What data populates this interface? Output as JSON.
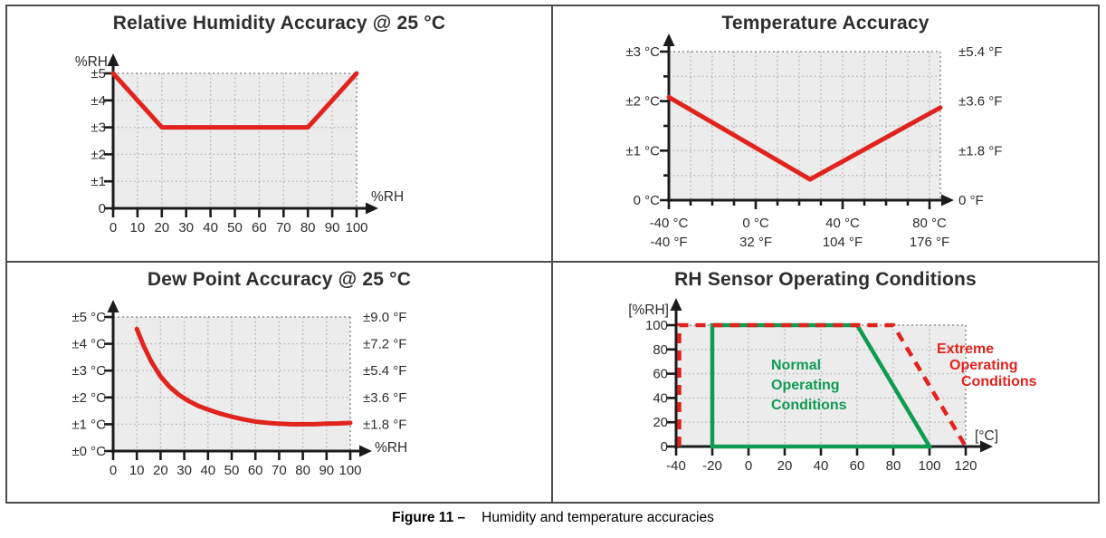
{
  "figure": {
    "caption_label": "Figure 11 –",
    "caption_text": "Humidity and temperature accuracies"
  },
  "colors": {
    "accuracy_line_red": "#e1231e",
    "normal_region_green": "#109b52",
    "extreme_region_red": "#e1231e",
    "plot_background": "#ececec",
    "grid_line": "#b5b5b5",
    "plot_dotted_border": "#8f8f8f",
    "axis_black": "#1b1b1b",
    "tick_text": "#2d2d2d",
    "title_text": "#2e2e2e"
  },
  "chart_data": [
    {
      "type": "line",
      "title": "Relative Humidity Accuracy @ 25 °C",
      "y_axis_label": "%RH",
      "x_axis_label": "%RH",
      "xlim": [
        0,
        100
      ],
      "ylim": [
        0,
        5
      ],
      "x_ticks": [
        0,
        10,
        20,
        30,
        40,
        50,
        60,
        70,
        80,
        90,
        100
      ],
      "x_tick_labels": [
        "0",
        "10",
        "20",
        "30",
        "40",
        "50",
        "60",
        "70",
        "80",
        "90",
        "100"
      ],
      "y_ticks": [
        0,
        1,
        2,
        3,
        4,
        5
      ],
      "y_left_labels": [
        "0",
        "±1",
        "±2",
        "±3",
        "±4",
        "±5"
      ],
      "grid_x": [
        10,
        20,
        30,
        40,
        50,
        60,
        70,
        80,
        90
      ],
      "grid_y": [
        1,
        2,
        3,
        4
      ],
      "series": [
        {
          "name": "rh-accuracy",
          "color": "#e1231e",
          "points": [
            [
              0,
              5
            ],
            [
              20,
              3
            ],
            [
              80,
              3
            ],
            [
              100,
              5
            ]
          ]
        }
      ]
    },
    {
      "type": "line",
      "title": "Temperature Accuracy",
      "xlim": [
        -40,
        85
      ],
      "ylim": [
        0,
        3
      ],
      "x_ticks": [
        -40,
        -30,
        -20,
        -10,
        0,
        10,
        20,
        30,
        40,
        50,
        60,
        70,
        80
      ],
      "x_major": [
        -40,
        0,
        40,
        80
      ],
      "x_labels_row1": [
        "-40 °C",
        "0 °C",
        "40 °C",
        "80 °C"
      ],
      "x_labels_row2": [
        "-40 °F",
        "32 °F",
        "104 °F",
        "176 °F"
      ],
      "y_ticks": [
        0,
        0.5,
        1,
        1.5,
        2,
        2.5,
        3
      ],
      "y_major": [
        0,
        1,
        2,
        3
      ],
      "y_left_labels": [
        "0 °C",
        "±1 °C",
        "±2 °C",
        "±3 °C"
      ],
      "y_right_labels": [
        "0 °F",
        "±1.8 °F",
        "±3.6 °F",
        "±5.4 °F"
      ],
      "grid_x": [
        -30,
        -20,
        -10,
        0,
        10,
        20,
        30,
        40,
        50,
        60,
        70,
        80
      ],
      "grid_y": [
        0.5,
        1,
        1.5,
        2,
        2.5
      ],
      "series": [
        {
          "name": "temperature-accuracy",
          "color": "#e1231e",
          "points": [
            [
              -40,
              2.08
            ],
            [
              25,
              0.42
            ],
            [
              85,
              1.87
            ]
          ]
        }
      ]
    },
    {
      "type": "line",
      "title": "Dew Point Accuracy @ 25 °C",
      "x_axis_label": "%RH",
      "xlim": [
        0,
        100
      ],
      "ylim": [
        0,
        5
      ],
      "x_ticks": [
        0,
        10,
        20,
        30,
        40,
        50,
        60,
        70,
        80,
        90,
        100
      ],
      "x_tick_labels": [
        "0",
        "10",
        "20",
        "30",
        "40",
        "50",
        "60",
        "70",
        "80",
        "90",
        "100"
      ],
      "y_ticks": [
        0,
        1,
        2,
        3,
        4,
        5
      ],
      "y_left_labels": [
        "±0 °C",
        "±1 °C",
        "±2 °C",
        "±3 °C",
        "±4 °C",
        "±5 °C"
      ],
      "y_right_labels": [
        null,
        "±1.8 °F",
        "±3.6 °F",
        "±5.4 °F",
        "±7.2 °F",
        "±9.0 °F"
      ],
      "grid_x": [
        10,
        20,
        30,
        40,
        50,
        60,
        70,
        80,
        90
      ],
      "grid_y": [
        1,
        2,
        3,
        4
      ],
      "series": [
        {
          "name": "dew-point-accuracy",
          "color": "#e1231e",
          "points": [
            [
              10,
              4.55
            ],
            [
              13,
              3.9
            ],
            [
              16,
              3.35
            ],
            [
              20,
              2.78
            ],
            [
              24,
              2.38
            ],
            [
              28,
              2.08
            ],
            [
              32,
              1.86
            ],
            [
              36,
              1.68
            ],
            [
              40,
              1.55
            ],
            [
              45,
              1.4
            ],
            [
              50,
              1.28
            ],
            [
              55,
              1.18
            ],
            [
              60,
              1.1
            ],
            [
              65,
              1.05
            ],
            [
              70,
              1.02
            ],
            [
              75,
              1.0
            ],
            [
              80,
              1.0
            ],
            [
              85,
              1.0
            ],
            [
              90,
              1.02
            ],
            [
              95,
              1.03
            ],
            [
              100,
              1.05
            ]
          ]
        }
      ]
    },
    {
      "type": "line",
      "title": "RH Sensor Operating Conditions",
      "y_axis_label": "[%RH]",
      "x_axis_label": "[°C]",
      "xlim": [
        -40,
        120
      ],
      "ylim": [
        0,
        100
      ],
      "x_ticks": [
        -40,
        -20,
        0,
        20,
        40,
        60,
        80,
        100,
        120
      ],
      "x_tick_labels": [
        "-40",
        "-20",
        "0",
        "20",
        "40",
        "60",
        "80",
        "100",
        "120"
      ],
      "y_ticks": [
        0,
        20,
        40,
        60,
        80,
        100
      ],
      "y_left_labels": [
        "0",
        "20",
        "40",
        "60",
        "80",
        "100"
      ],
      "grid_x": [
        -20,
        0,
        20,
        40,
        60,
        80,
        100
      ],
      "grid_y": [
        20,
        40,
        60,
        80
      ],
      "regions": [
        {
          "name": "normal-operating-region",
          "label": "Normal Operating Conditions",
          "color": "#109b52",
          "style": "solid",
          "closed": true,
          "points": [
            [
              -20,
              0
            ],
            [
              -20,
              100
            ],
            [
              60,
              100
            ],
            [
              100,
              0
            ]
          ]
        },
        {
          "name": "extreme-operating-region",
          "label": "Extreme Operating Conditions",
          "color": "#e1231e",
          "style": "dashed",
          "closed": false,
          "inset_left": true,
          "points": [
            [
              -40,
              0
            ],
            [
              -40,
              100
            ],
            [
              80,
              100
            ],
            [
              120,
              0
            ]
          ]
        }
      ],
      "annotations": [
        {
          "name": "normal-label",
          "lines": [
            "Normal",
            "Operating",
            "Conditions"
          ]
        },
        {
          "name": "extreme-label",
          "lines": [
            "Extreme",
            "Operating",
            "Conditions"
          ]
        }
      ]
    }
  ]
}
